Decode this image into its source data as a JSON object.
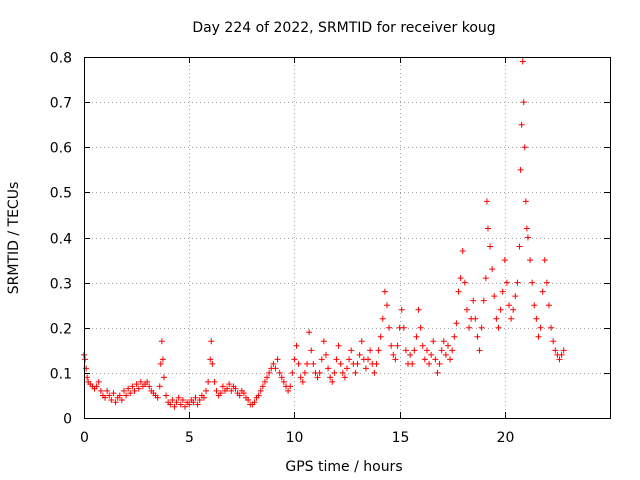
{
  "chart_data": {
    "type": "scatter",
    "title": "Day 224 of 2022, SRMTID for receiver koug",
    "xlabel": "GPS time / hours",
    "ylabel": "SRMTID / TECUs",
    "xlim": [
      0,
      25
    ],
    "ylim": [
      0,
      0.8
    ],
    "x_ticks": [
      0,
      5,
      10,
      15,
      20
    ],
    "y_ticks": [
      0,
      0.1,
      0.2,
      0.3,
      0.4,
      0.5,
      0.6,
      0.7,
      0.8
    ],
    "x_tick_labels": [
      "0",
      "5",
      "10",
      "15",
      "20"
    ],
    "y_tick_labels": [
      "0",
      "0.1",
      "0.2",
      "0.3",
      "0.4",
      "0.5",
      "0.6",
      "0.7",
      "0.8"
    ],
    "grid": true,
    "marker": "plus",
    "series": [
      {
        "name": "SRMTID",
        "color": "#ff0000",
        "points": [
          [
            0.0,
            0.14
          ],
          [
            0.05,
            0.13
          ],
          [
            0.1,
            0.11
          ],
          [
            0.15,
            0.09
          ],
          [
            0.2,
            0.08
          ],
          [
            0.3,
            0.075
          ],
          [
            0.4,
            0.07
          ],
          [
            0.5,
            0.065
          ],
          [
            0.6,
            0.07
          ],
          [
            0.7,
            0.08
          ],
          [
            0.8,
            0.06
          ],
          [
            0.9,
            0.05
          ],
          [
            1.0,
            0.045
          ],
          [
            1.1,
            0.06
          ],
          [
            1.2,
            0.05
          ],
          [
            1.3,
            0.04
          ],
          [
            1.4,
            0.055
          ],
          [
            1.5,
            0.035
          ],
          [
            1.6,
            0.045
          ],
          [
            1.7,
            0.05
          ],
          [
            1.8,
            0.04
          ],
          [
            1.9,
            0.06
          ],
          [
            2.0,
            0.05
          ],
          [
            2.1,
            0.065
          ],
          [
            2.2,
            0.055
          ],
          [
            2.3,
            0.07
          ],
          [
            2.4,
            0.06
          ],
          [
            2.5,
            0.075
          ],
          [
            2.6,
            0.065
          ],
          [
            2.7,
            0.08
          ],
          [
            2.8,
            0.07
          ],
          [
            2.9,
            0.075
          ],
          [
            3.0,
            0.08
          ],
          [
            3.1,
            0.07
          ],
          [
            3.2,
            0.06
          ],
          [
            3.3,
            0.055
          ],
          [
            3.4,
            0.05
          ],
          [
            3.5,
            0.045
          ],
          [
            3.6,
            0.07
          ],
          [
            3.65,
            0.12
          ],
          [
            3.7,
            0.17
          ],
          [
            3.75,
            0.13
          ],
          [
            3.8,
            0.09
          ],
          [
            3.9,
            0.05
          ],
          [
            4.0,
            0.035
          ],
          [
            4.1,
            0.03
          ],
          [
            4.2,
            0.04
          ],
          [
            4.3,
            0.025
          ],
          [
            4.4,
            0.035
          ],
          [
            4.5,
            0.045
          ],
          [
            4.6,
            0.03
          ],
          [
            4.7,
            0.04
          ],
          [
            4.8,
            0.025
          ],
          [
            4.9,
            0.035
          ],
          [
            5.0,
            0.03
          ],
          [
            5.1,
            0.04
          ],
          [
            5.2,
            0.035
          ],
          [
            5.3,
            0.045
          ],
          [
            5.4,
            0.03
          ],
          [
            5.5,
            0.04
          ],
          [
            5.6,
            0.05
          ],
          [
            5.7,
            0.045
          ],
          [
            5.8,
            0.06
          ],
          [
            5.9,
            0.08
          ],
          [
            6.0,
            0.13
          ],
          [
            6.05,
            0.17
          ],
          [
            6.1,
            0.12
          ],
          [
            6.2,
            0.08
          ],
          [
            6.3,
            0.06
          ],
          [
            6.4,
            0.05
          ],
          [
            6.5,
            0.055
          ],
          [
            6.6,
            0.07
          ],
          [
            6.7,
            0.06
          ],
          [
            6.8,
            0.065
          ],
          [
            6.9,
            0.075
          ],
          [
            7.0,
            0.06
          ],
          [
            7.1,
            0.07
          ],
          [
            7.2,
            0.065
          ],
          [
            7.3,
            0.055
          ],
          [
            7.4,
            0.05
          ],
          [
            7.5,
            0.06
          ],
          [
            7.6,
            0.055
          ],
          [
            7.7,
            0.045
          ],
          [
            7.8,
            0.04
          ],
          [
            7.9,
            0.03
          ],
          [
            8.0,
            0.03
          ],
          [
            8.1,
            0.035
          ],
          [
            8.2,
            0.045
          ],
          [
            8.3,
            0.05
          ],
          [
            8.4,
            0.06
          ],
          [
            8.5,
            0.07
          ],
          [
            8.6,
            0.08
          ],
          [
            8.7,
            0.09
          ],
          [
            8.8,
            0.1
          ],
          [
            8.9,
            0.11
          ],
          [
            9.0,
            0.12
          ],
          [
            9.1,
            0.11
          ],
          [
            9.2,
            0.13
          ],
          [
            9.3,
            0.1
          ],
          [
            9.4,
            0.09
          ],
          [
            9.5,
            0.08
          ],
          [
            9.6,
            0.07
          ],
          [
            9.7,
            0.06
          ],
          [
            9.8,
            0.07
          ],
          [
            9.9,
            0.1
          ],
          [
            10.0,
            0.13
          ],
          [
            10.1,
            0.16
          ],
          [
            10.2,
            0.12
          ],
          [
            10.3,
            0.09
          ],
          [
            10.4,
            0.08
          ],
          [
            10.5,
            0.1
          ],
          [
            10.6,
            0.12
          ],
          [
            10.7,
            0.19
          ],
          [
            10.8,
            0.15
          ],
          [
            10.9,
            0.12
          ],
          [
            11.0,
            0.1
          ],
          [
            11.1,
            0.09
          ],
          [
            11.2,
            0.1
          ],
          [
            11.3,
            0.13
          ],
          [
            11.4,
            0.17
          ],
          [
            11.5,
            0.14
          ],
          [
            11.6,
            0.11
          ],
          [
            11.7,
            0.09
          ],
          [
            11.8,
            0.08
          ],
          [
            11.9,
            0.1
          ],
          [
            12.0,
            0.13
          ],
          [
            12.1,
            0.16
          ],
          [
            12.2,
            0.12
          ],
          [
            12.3,
            0.1
          ],
          [
            12.4,
            0.09
          ],
          [
            12.5,
            0.11
          ],
          [
            12.6,
            0.13
          ],
          [
            12.7,
            0.15
          ],
          [
            12.8,
            0.12
          ],
          [
            12.9,
            0.1
          ],
          [
            13.0,
            0.12
          ],
          [
            13.1,
            0.14
          ],
          [
            13.2,
            0.17
          ],
          [
            13.3,
            0.13
          ],
          [
            13.4,
            0.11
          ],
          [
            13.5,
            0.13
          ],
          [
            13.6,
            0.15
          ],
          [
            13.7,
            0.12
          ],
          [
            13.8,
            0.1
          ],
          [
            13.9,
            0.12
          ],
          [
            14.0,
            0.15
          ],
          [
            14.1,
            0.18
          ],
          [
            14.2,
            0.22
          ],
          [
            14.3,
            0.28
          ],
          [
            14.4,
            0.25
          ],
          [
            14.5,
            0.2
          ],
          [
            14.6,
            0.16
          ],
          [
            14.7,
            0.14
          ],
          [
            14.8,
            0.13
          ],
          [
            14.9,
            0.16
          ],
          [
            15.0,
            0.2
          ],
          [
            15.1,
            0.24
          ],
          [
            15.2,
            0.2
          ],
          [
            15.3,
            0.15
          ],
          [
            15.4,
            0.12
          ],
          [
            15.5,
            0.14
          ],
          [
            15.6,
            0.12
          ],
          [
            15.7,
            0.15
          ],
          [
            15.8,
            0.18
          ],
          [
            15.9,
            0.24
          ],
          [
            16.0,
            0.2
          ],
          [
            16.1,
            0.16
          ],
          [
            16.2,
            0.13
          ],
          [
            16.3,
            0.15
          ],
          [
            16.4,
            0.12
          ],
          [
            16.5,
            0.14
          ],
          [
            16.6,
            0.17
          ],
          [
            16.7,
            0.13
          ],
          [
            16.8,
            0.1
          ],
          [
            16.9,
            0.12
          ],
          [
            17.0,
            0.15
          ],
          [
            17.1,
            0.17
          ],
          [
            17.2,
            0.14
          ],
          [
            17.3,
            0.16
          ],
          [
            17.4,
            0.13
          ],
          [
            17.5,
            0.15
          ],
          [
            17.6,
            0.18
          ],
          [
            17.7,
            0.21
          ],
          [
            17.8,
            0.28
          ],
          [
            17.9,
            0.31
          ],
          [
            18.0,
            0.37
          ],
          [
            18.1,
            0.3
          ],
          [
            18.2,
            0.24
          ],
          [
            18.3,
            0.2
          ],
          [
            18.4,
            0.22
          ],
          [
            18.5,
            0.26
          ],
          [
            18.6,
            0.22
          ],
          [
            18.7,
            0.18
          ],
          [
            18.8,
            0.15
          ],
          [
            18.9,
            0.2
          ],
          [
            19.0,
            0.26
          ],
          [
            19.1,
            0.31
          ],
          [
            19.15,
            0.48
          ],
          [
            19.2,
            0.42
          ],
          [
            19.3,
            0.38
          ],
          [
            19.4,
            0.33
          ],
          [
            19.5,
            0.27
          ],
          [
            19.6,
            0.22
          ],
          [
            19.7,
            0.2
          ],
          [
            19.8,
            0.24
          ],
          [
            19.9,
            0.28
          ],
          [
            20.0,
            0.35
          ],
          [
            20.1,
            0.3
          ],
          [
            20.2,
            0.25
          ],
          [
            20.3,
            0.22
          ],
          [
            20.4,
            0.24
          ],
          [
            20.5,
            0.27
          ],
          [
            20.6,
            0.3
          ],
          [
            20.7,
            0.38
          ],
          [
            20.75,
            0.55
          ],
          [
            20.8,
            0.65
          ],
          [
            20.85,
            0.79
          ],
          [
            20.9,
            0.7
          ],
          [
            20.95,
            0.6
          ],
          [
            21.0,
            0.48
          ],
          [
            21.05,
            0.42
          ],
          [
            21.1,
            0.4
          ],
          [
            21.2,
            0.35
          ],
          [
            21.3,
            0.3
          ],
          [
            21.4,
            0.25
          ],
          [
            21.5,
            0.22
          ],
          [
            21.6,
            0.18
          ],
          [
            21.7,
            0.2
          ],
          [
            21.8,
            0.28
          ],
          [
            21.9,
            0.35
          ],
          [
            22.0,
            0.3
          ],
          [
            22.1,
            0.25
          ],
          [
            22.2,
            0.2
          ],
          [
            22.3,
            0.17
          ],
          [
            22.4,
            0.15
          ],
          [
            22.5,
            0.14
          ],
          [
            22.6,
            0.13
          ],
          [
            22.7,
            0.14
          ],
          [
            22.8,
            0.15
          ]
        ]
      }
    ]
  }
}
